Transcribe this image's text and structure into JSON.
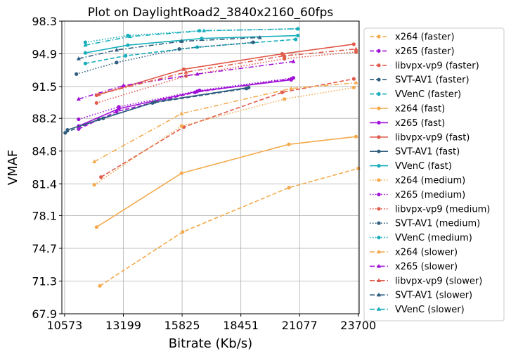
{
  "chart_data": {
    "type": "line",
    "title": "Plot on DaylightRoad2_3840x2160_60fps",
    "xlabel": "Bitrate (Kb/s)",
    "ylabel": "VMAF",
    "xlim": [
      10450,
      23740
    ],
    "ylim": [
      67.9,
      98.3
    ],
    "xticks": [
      "10573",
      "13199",
      "15825",
      "18451",
      "21077",
      "23700"
    ],
    "xtick_values": [
      10573,
      13199,
      15825,
      18451,
      21077,
      23700
    ],
    "yticks": [
      "67.9",
      "71.3",
      "74.7",
      "78.1",
      "81.4",
      "84.8",
      "88.2",
      "91.5",
      "94.9",
      "98.3"
    ],
    "ytick_values": [
      67.9,
      71.3,
      74.7,
      78.1,
      81.4,
      84.8,
      88.2,
      91.5,
      94.9,
      98.3
    ],
    "grid": true,
    "legend_position": "outside-right",
    "colors": {
      "x264": "#f4aa4c",
      "x265": "#a010d8",
      "libvpx-vp9": "#e0594a",
      "SVT-AV1": "#2e5c7e",
      "VVenC": "#16aebb"
    },
    "series": [
      {
        "name": "x264 (faster)",
        "codec": "x264",
        "preset": "faster",
        "style": "dashed",
        "marker": "circle",
        "x": [
          12150,
          15850,
          20600,
          23700
        ],
        "y": [
          70.8,
          76.4,
          81.0,
          83.0
        ]
      },
      {
        "name": "x265 (faster)",
        "codec": "x265",
        "preset": "faster",
        "style": "dashed",
        "marker": "circle",
        "x": [
          11200,
          12900,
          16400,
          20700
        ],
        "y": [
          87.1,
          88.9,
          90.9,
          92.3
        ]
      },
      {
        "name": "libvpx-vp9 (faster)",
        "codec": "libvpx-vp9",
        "preset": "faster",
        "style": "dashed",
        "marker": "circle",
        "x": [
          12200,
          15900,
          20300,
          23500
        ],
        "y": [
          82.1,
          87.3,
          90.9,
          92.3
        ]
      },
      {
        "name": "SVT-AV1 (faster)",
        "codec": "SVT-AV1",
        "preset": "faster",
        "style": "dashed",
        "marker": "circle",
        "x": [
          10600,
          12100,
          14500,
          18700
        ],
        "y": [
          86.7,
          88.1,
          89.8,
          91.3
        ]
      },
      {
        "name": "VVenC (faster)",
        "codec": "VVenC",
        "preset": "faster",
        "style": "dashed",
        "marker": "circle",
        "x": [
          11500,
          13300,
          16500,
          20900
        ],
        "y": [
          93.9,
          94.7,
          95.6,
          96.4
        ]
      },
      {
        "name": "x264 (fast)",
        "codec": "x264",
        "preset": "fast",
        "style": "solid",
        "marker": "circle",
        "x": [
          12000,
          15800,
          20600,
          23600
        ],
        "y": [
          76.9,
          82.5,
          85.5,
          86.3
        ]
      },
      {
        "name": "x265 (fast)",
        "codec": "x265",
        "preset": "fast",
        "style": "solid",
        "marker": "circle",
        "x": [
          11200,
          13000,
          16500,
          20700
        ],
        "y": [
          87.4,
          89.2,
          91.0,
          92.2
        ]
      },
      {
        "name": "libvpx-vp9 (fast)",
        "codec": "libvpx-vp9",
        "preset": "fast",
        "style": "solid",
        "marker": "circle",
        "x": [
          12000,
          15900,
          20300,
          23500
        ],
        "y": [
          90.6,
          93.3,
          94.9,
          95.9
        ]
      },
      {
        "name": "SVT-AV1 (fast)",
        "codec": "SVT-AV1",
        "preset": "fast",
        "style": "solid",
        "marker": "circle",
        "x": [
          10700,
          12300,
          14600,
          18800
        ],
        "y": [
          87.0,
          88.2,
          89.9,
          91.4
        ]
      },
      {
        "name": "VVenC (fast)",
        "codec": "VVenC",
        "preset": "fast",
        "style": "solid",
        "marker": "circle",
        "x": [
          11500,
          13400,
          16700,
          21000
        ],
        "y": [
          95.0,
          95.8,
          96.5,
          96.8
        ]
      },
      {
        "name": "x264 (medium)",
        "codec": "x264",
        "preset": "medium",
        "style": "dotted",
        "marker": "circle",
        "x": [
          11900,
          15800,
          20400,
          23500
        ],
        "y": [
          81.3,
          87.4,
          90.2,
          91.4
        ]
      },
      {
        "name": "x265 (medium)",
        "codec": "x265",
        "preset": "medium",
        "style": "dotted",
        "marker": "circle",
        "x": [
          11200,
          13000,
          16600,
          20800
        ],
        "y": [
          88.1,
          89.4,
          91.1,
          92.4
        ]
      },
      {
        "name": "libvpx-vp9 (medium)",
        "codec": "libvpx-vp9",
        "preset": "medium",
        "style": "dotted",
        "marker": "circle",
        "x": [
          12000,
          16000,
          20400,
          23600
        ],
        "y": [
          89.8,
          92.6,
          94.4,
          95.1
        ]
      },
      {
        "name": "SVT-AV1 (medium)",
        "codec": "SVT-AV1",
        "preset": "medium",
        "style": "dotted",
        "marker": "circle",
        "x": [
          11100,
          12900,
          15700,
          19000
        ],
        "y": [
          92.8,
          94.0,
          95.4,
          96.1
        ]
      },
      {
        "name": "VVenC (medium)",
        "codec": "VVenC",
        "preset": "medium",
        "style": "dotted",
        "marker": "circle",
        "x": [
          11500,
          13400,
          16600,
          21000
        ],
        "y": [
          96.1,
          96.8,
          97.3,
          97.5
        ]
      },
      {
        "name": "x264 (slower)",
        "codec": "x264",
        "preset": "slower",
        "style": "dashdot",
        "marker": "triangle",
        "x": [
          11900,
          15800,
          20700,
          23600
        ],
        "y": [
          83.7,
          88.7,
          91.3,
          91.9
        ]
      },
      {
        "name": "x265 (slower)",
        "codec": "x265",
        "preset": "slower",
        "style": "dashdot",
        "marker": "triangle",
        "x": [
          11200,
          13200,
          16500,
          20800
        ],
        "y": [
          90.2,
          91.6,
          92.8,
          94.1
        ]
      },
      {
        "name": "libvpx-vp9 (slower)",
        "codec": "libvpx-vp9",
        "preset": "slower",
        "style": "dashdot",
        "marker": "triangle",
        "x": [
          12100,
          16000,
          20400,
          23600
        ],
        "y": [
          90.7,
          93.0,
          94.7,
          95.4
        ]
      },
      {
        "name": "SVT-AV1 (slower)",
        "codec": "SVT-AV1",
        "preset": "slower",
        "style": "dashdot",
        "marker": "triangle",
        "x": [
          11200,
          12900,
          15800,
          19300
        ],
        "y": [
          94.4,
          95.3,
          96.2,
          96.6
        ]
      },
      {
        "name": "VVenC (slower)",
        "codec": "VVenC",
        "preset": "slower",
        "style": "dashdot",
        "marker": "triangle",
        "x": [
          11500,
          13500,
          16800,
          21000
        ],
        "y": [
          95.8,
          96.7,
          97.3,
          97.5
        ]
      }
    ]
  }
}
